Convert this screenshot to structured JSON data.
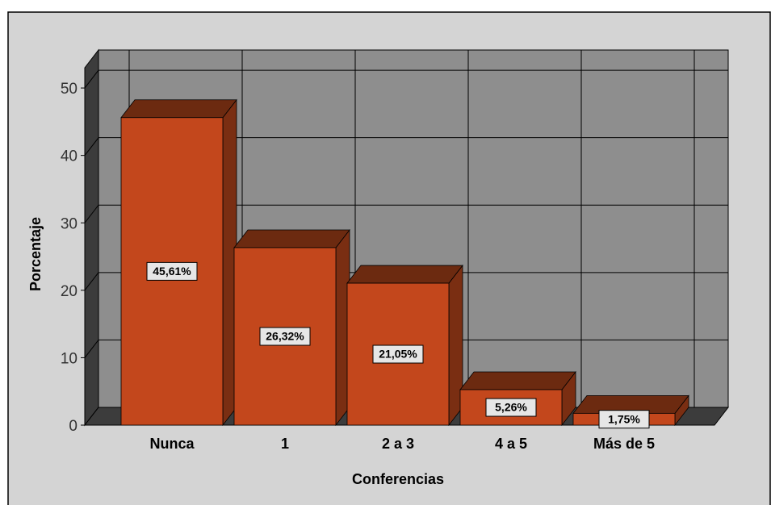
{
  "chart_data": {
    "type": "bar3d",
    "x_label": "Conferencias",
    "y_label": "Porcentaje",
    "categories": [
      "Nunca",
      "1",
      "2 a 3",
      "4 a 5",
      "Más de 5"
    ],
    "values": [
      45.61,
      26.32,
      21.05,
      5.26,
      1.75
    ],
    "value_labels": [
      "45,61%",
      "26,32%",
      "21,05%",
      "5,26%",
      "1,75%"
    ],
    "color": "#c3471c",
    "ylim": [
      0,
      53
    ],
    "yticks": [
      0,
      10,
      20,
      30,
      40,
      50
    ],
    "grid": true
  }
}
